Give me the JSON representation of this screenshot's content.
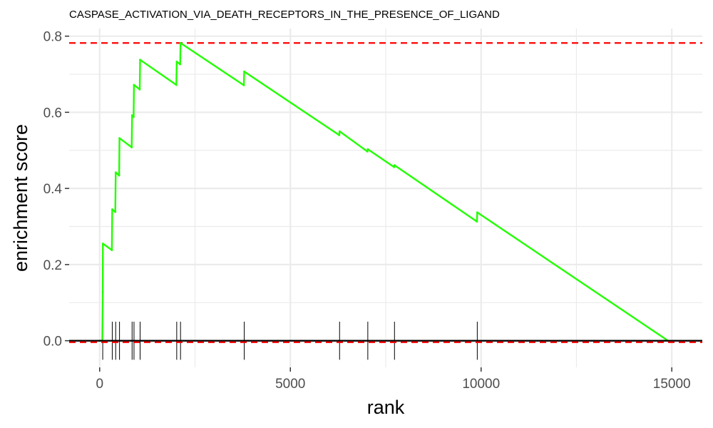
{
  "chart_data": {
    "type": "line",
    "title": "CASPASE_ACTIVATION_VIA_DEATH_RECEPTORS_IN_THE_PRESENCE_OF_LIGAND",
    "xlabel": "rank",
    "ylabel": "enrichment score",
    "xlim": [
      -800,
      15800
    ],
    "ylim": [
      -0.07,
      0.82
    ],
    "x_ticks": [
      0,
      5000,
      10000,
      15000
    ],
    "y_ticks": [
      0.0,
      0.2,
      0.4,
      0.6,
      0.8
    ],
    "x_tick_labels": [
      "0",
      "5000",
      "10000",
      "15000"
    ],
    "y_tick_labels": [
      "0.0",
      "0.2",
      "0.4",
      "0.6",
      "0.8"
    ],
    "grid": true,
    "colors": {
      "running_score": "#22ff00",
      "threshold_line": "#ff0000",
      "zero_line": "#000000",
      "hit_ticks": "#000000",
      "grid": "#ebebeb",
      "axis_text": "#4d4d4d"
    },
    "thresholds": {
      "max_es": 0.782,
      "min_es": -0.004
    },
    "hits": [
      80,
      330,
      420,
      520,
      850,
      900,
      1060,
      2020,
      2120,
      3790,
      6290,
      7030,
      7730,
      9900
    ],
    "series": [
      {
        "values": [
          {
            "x": 0,
            "y": 0.0
          },
          {
            "x": 70,
            "y": 0.0
          },
          {
            "x": 80,
            "y": 0.128
          },
          {
            "x": 85,
            "y": 0.255
          },
          {
            "x": 320,
            "y": 0.238
          },
          {
            "x": 330,
            "y": 0.345
          },
          {
            "x": 410,
            "y": 0.338
          },
          {
            "x": 420,
            "y": 0.442
          },
          {
            "x": 510,
            "y": 0.434
          },
          {
            "x": 520,
            "y": 0.532
          },
          {
            "x": 840,
            "y": 0.508
          },
          {
            "x": 850,
            "y": 0.592
          },
          {
            "x": 890,
            "y": 0.588
          },
          {
            "x": 900,
            "y": 0.672
          },
          {
            "x": 1050,
            "y": 0.66
          },
          {
            "x": 1060,
            "y": 0.738
          },
          {
            "x": 2010,
            "y": 0.672
          },
          {
            "x": 2020,
            "y": 0.733
          },
          {
            "x": 2110,
            "y": 0.726
          },
          {
            "x": 2120,
            "y": 0.782
          },
          {
            "x": 3780,
            "y": 0.671
          },
          {
            "x": 3790,
            "y": 0.707
          },
          {
            "x": 6280,
            "y": 0.54
          },
          {
            "x": 6290,
            "y": 0.55
          },
          {
            "x": 7020,
            "y": 0.497
          },
          {
            "x": 7030,
            "y": 0.503
          },
          {
            "x": 7720,
            "y": 0.456
          },
          {
            "x": 7730,
            "y": 0.461
          },
          {
            "x": 9890,
            "y": 0.313
          },
          {
            "x": 9900,
            "y": 0.337
          },
          {
            "x": 14900,
            "y": 0.0
          }
        ]
      }
    ]
  }
}
